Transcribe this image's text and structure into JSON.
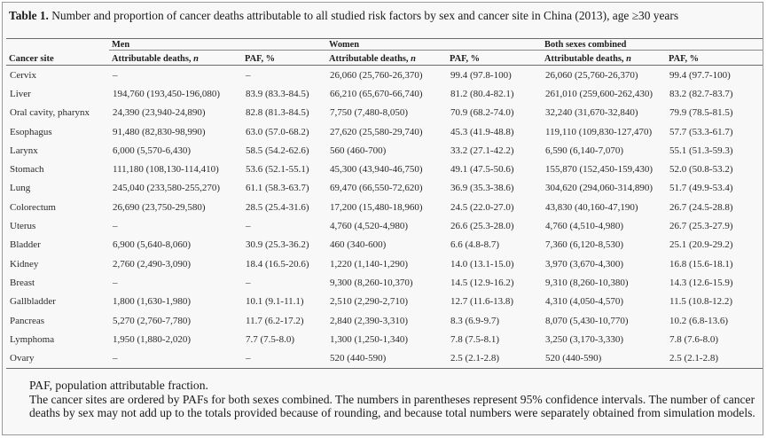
{
  "caption": {
    "label": "Table 1.",
    "text": " Number and proportion of cancer deaths attributable to all studied risk factors by sex and cancer site in China (2013), age ≥30 years"
  },
  "table": {
    "groups": {
      "men": "Men",
      "women": "Women",
      "both": "Both sexes combined"
    },
    "headers": {
      "site": "Cancer site",
      "attr_prefix": "Attributable deaths, ",
      "attr_n": "n",
      "paf": "PAF, %"
    },
    "rows": [
      {
        "site": "Cervix",
        "men_deaths": "–",
        "men_paf": "–",
        "women_deaths": "26,060 (25,760-26,370)",
        "women_paf": "99.4 (97.8-100)",
        "both_deaths": "26,060 (25,760-26,370)",
        "both_paf": "99.4 (97.7-100)"
      },
      {
        "site": "Liver",
        "men_deaths": "194,760 (193,450-196,080)",
        "men_paf": "83.9 (83.3-84.5)",
        "women_deaths": "66,210 (65,670-66,740)",
        "women_paf": "81.2 (80.4-82.1)",
        "both_deaths": "261,010 (259,600-262,430)",
        "both_paf": "83.2 (82.7-83.7)"
      },
      {
        "site": "Oral cavity, pharynx",
        "men_deaths": "24,390 (23,940-24,890)",
        "men_paf": "82.8 (81.3-84.5)",
        "women_deaths": "7,750 (7,480-8,050)",
        "women_paf": "70.9 (68.2-74.0)",
        "both_deaths": "32,240 (31,670-32,840)",
        "both_paf": "79.9 (78.5-81.5)"
      },
      {
        "site": "Esophagus",
        "men_deaths": "91,480 (82,830-98,990)",
        "men_paf": "63.0 (57.0-68.2)",
        "women_deaths": "27,620 (25,580-29,740)",
        "women_paf": "45.3 (41.9-48.8)",
        "both_deaths": "119,110 (109,830-127,470)",
        "both_paf": "57.7 (53.3-61.7)"
      },
      {
        "site": "Larynx",
        "men_deaths": "6,000 (5,570-6,430)",
        "men_paf": "58.5 (54.2-62.6)",
        "women_deaths": "560 (460-700)",
        "women_paf": "33.2 (27.1-42.2)",
        "both_deaths": "6,590 (6,140-7,070)",
        "both_paf": "55.1 (51.3-59.3)"
      },
      {
        "site": "Stomach",
        "men_deaths": "111,180 (108,130-114,410)",
        "men_paf": "53.6 (52.1-55.1)",
        "women_deaths": "45,300 (43,940-46,750)",
        "women_paf": "49.1 (47.5-50.6)",
        "both_deaths": "155,870 (152,450-159,430)",
        "both_paf": "52.0 (50.8-53.2)"
      },
      {
        "site": "Lung",
        "men_deaths": "245,040 (233,580-255,270)",
        "men_paf": "61.1 (58.3-63.7)",
        "women_deaths": "69,470 (66,550-72,620)",
        "women_paf": "36.9 (35.3-38.6)",
        "both_deaths": "304,620 (294,060-314,890)",
        "both_paf": "51.7 (49.9-53.4)"
      },
      {
        "site": "Colorectum",
        "men_deaths": "26,690 (23,750-29,580)",
        "men_paf": "28.5 (25.4-31.6)",
        "women_deaths": "17,200 (15,480-18,960)",
        "women_paf": "24.5 (22.0-27.0)",
        "both_deaths": "43,830 (40,160-47,190)",
        "both_paf": "26.7 (24.5-28.8)"
      },
      {
        "site": "Uterus",
        "men_deaths": "–",
        "men_paf": "–",
        "women_deaths": "4,760 (4,520-4,980)",
        "women_paf": "26.6 (25.3-28.0)",
        "both_deaths": "4,760 (4,510-4,980)",
        "both_paf": "26.7 (25.3-27.9)"
      },
      {
        "site": "Bladder",
        "men_deaths": "6,900 (5,640-8,060)",
        "men_paf": "30.9 (25.3-36.2)",
        "women_deaths": "460 (340-600)",
        "women_paf": "6.6 (4.8-8.7)",
        "both_deaths": "7,360 (6,120-8,530)",
        "both_paf": "25.1 (20.9-29.2)"
      },
      {
        "site": "Kidney",
        "men_deaths": "2,760 (2,490-3,090)",
        "men_paf": "18.4 (16.5-20.6)",
        "women_deaths": "1,220 (1,140-1,290)",
        "women_paf": "14.0 (13.1-15.0)",
        "both_deaths": "3,970 (3,670-4,300)",
        "both_paf": "16.8 (15.6-18.1)"
      },
      {
        "site": "Breast",
        "men_deaths": "–",
        "men_paf": "–",
        "women_deaths": "9,300 (8,260-10,370)",
        "women_paf": "14.5 (12.9-16.2)",
        "both_deaths": "9,310 (8,260-10,380)",
        "both_paf": "14.3 (12.6-15.9)"
      },
      {
        "site": "Gallbladder",
        "men_deaths": "1,800 (1,630-1,980)",
        "men_paf": "10.1 (9.1-11.1)",
        "women_deaths": "2,510 (2,290-2,710)",
        "women_paf": "12.7 (11.6-13.8)",
        "both_deaths": "4,310 (4,050-4,570)",
        "both_paf": "11.5 (10.8-12.2)"
      },
      {
        "site": "Pancreas",
        "men_deaths": "5,270 (2,760-7,780)",
        "men_paf": "11.7 (6.2-17.2)",
        "women_deaths": "2,840 (2,390-3,310)",
        "women_paf": "8.3 (6.9-9.7)",
        "both_deaths": "8,070 (5,430-10,770)",
        "both_paf": "10.2 (6.8-13.6)"
      },
      {
        "site": "Lymphoma",
        "men_deaths": "1,950 (1,880-2,020)",
        "men_paf": "7.7 (7.5-8.0)",
        "women_deaths": "1,300 (1,250-1,340)",
        "women_paf": "7.8 (7.5-8.1)",
        "both_deaths": "3,250 (3,170-3,330)",
        "both_paf": "7.8 (7.6-8.0)"
      },
      {
        "site": "Ovary",
        "men_deaths": "–",
        "men_paf": "–",
        "women_deaths": "520 (440-590)",
        "women_paf": "2.5 (2.1-2.8)",
        "both_deaths": "520 (440-590)",
        "both_paf": "2.5 (2.1-2.8)"
      }
    ]
  },
  "notes": {
    "line1": "PAF, population attributable fraction.",
    "line2": "The cancer sites are ordered by PAFs for both sexes combined. The numbers in parentheses represent 95% confidence intervals. The number of cancer deaths by sex may not add up to the totals provided because of rounding, and because total numbers were separately obtained from simulation models."
  }
}
